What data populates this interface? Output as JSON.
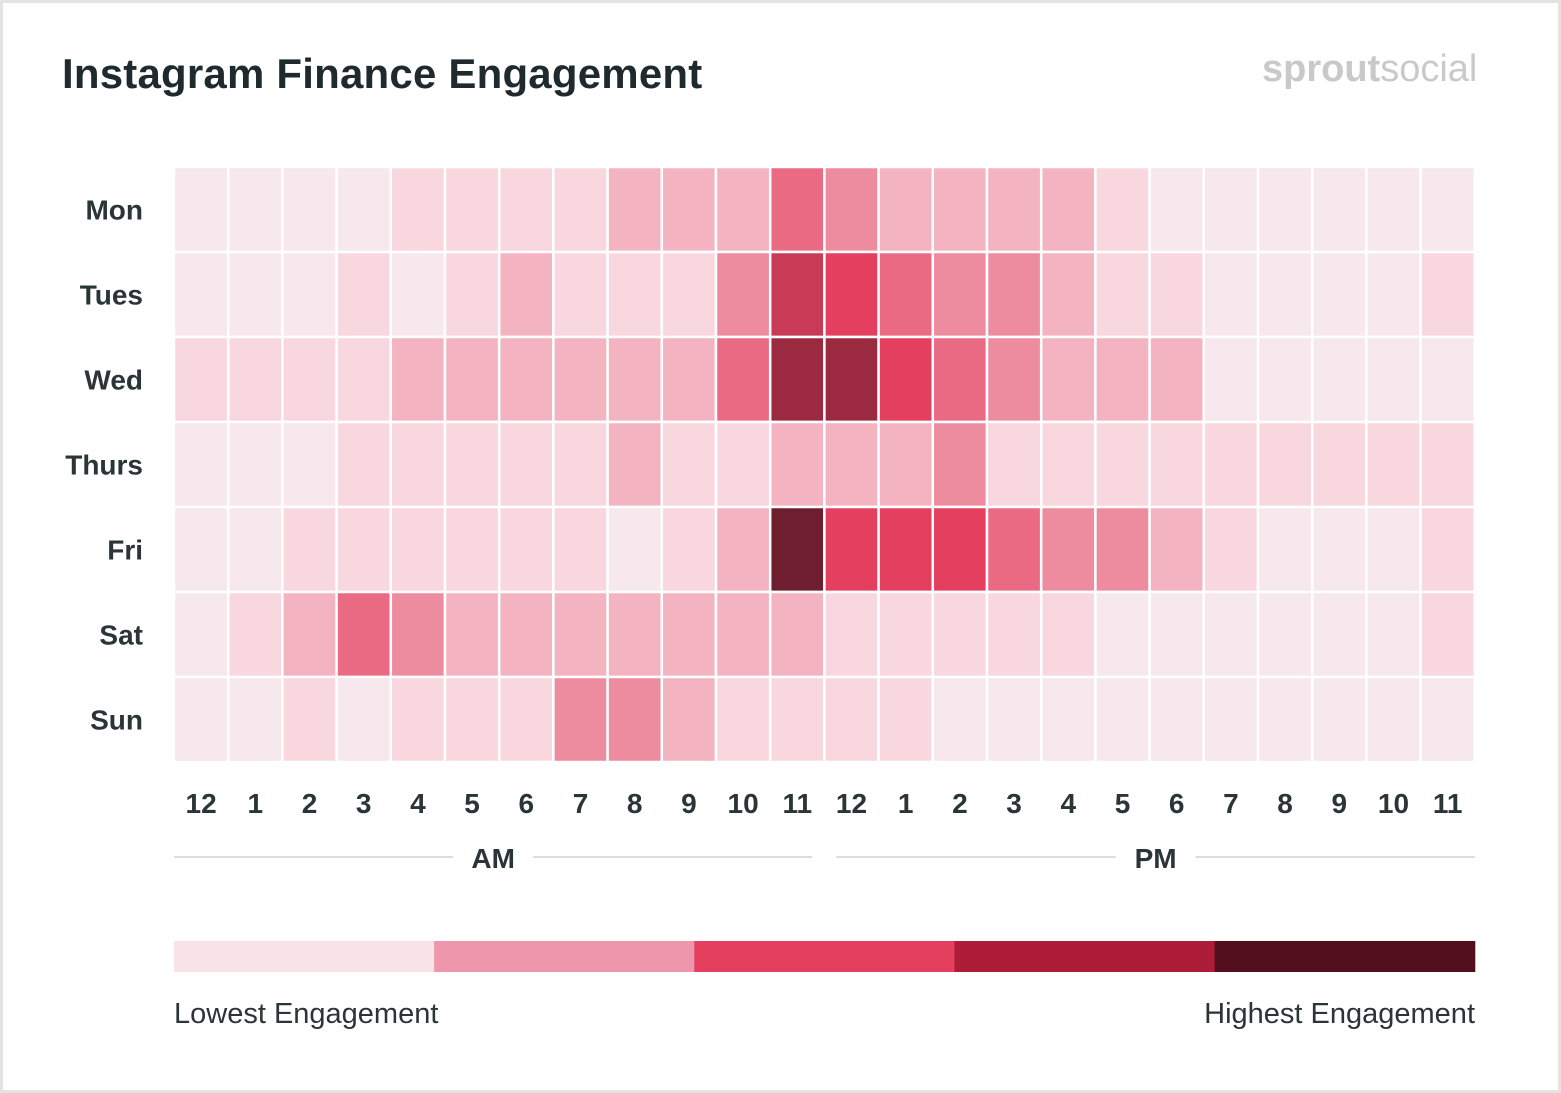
{
  "title": "Instagram Finance Engagement",
  "brand": {
    "part1": "sprout",
    "part2": "social"
  },
  "chart_data": {
    "type": "heatmap",
    "title": "Instagram Finance Engagement",
    "rows": [
      "Mon",
      "Tues",
      "Wed",
      "Thurs",
      "Fri",
      "Sat",
      "Sun"
    ],
    "columns": [
      "12",
      "1",
      "2",
      "3",
      "4",
      "5",
      "6",
      "7",
      "8",
      "9",
      "10",
      "11",
      "12",
      "1",
      "2",
      "3",
      "4",
      "5",
      "6",
      "7",
      "8",
      "9",
      "10",
      "11"
    ],
    "period_labels": [
      "AM",
      "PM"
    ],
    "scale": {
      "min": 0,
      "max": 10
    },
    "level_colors": [
      "#f6e8ec",
      "#f8d8de",
      "#f4b3c0",
      "#ee8c9f",
      "#e96a82",
      "#e43f5f",
      "#c83a56",
      "#9b2a40",
      "#7a1f32",
      "#6f1e2f",
      "#501120"
    ],
    "values": [
      [
        0,
        0,
        0,
        0,
        1,
        1,
        1,
        1,
        2,
        2,
        2,
        4,
        3,
        2,
        2,
        2,
        2,
        1,
        0,
        0,
        0,
        0,
        0,
        0
      ],
      [
        0,
        0,
        0,
        1,
        0,
        1,
        2,
        1,
        1,
        1,
        3,
        6,
        5,
        4,
        3,
        3,
        2,
        1,
        1,
        0,
        0,
        0,
        0,
        1
      ],
      [
        1,
        1,
        1,
        1,
        2,
        2,
        2,
        2,
        2,
        2,
        4,
        7,
        7,
        5,
        4,
        3,
        2,
        2,
        2,
        0,
        0,
        0,
        0,
        0
      ],
      [
        0,
        0,
        0,
        1,
        1,
        1,
        1,
        1,
        2,
        1,
        1,
        2,
        2,
        2,
        3,
        1,
        1,
        1,
        1,
        1,
        1,
        1,
        1,
        1
      ],
      [
        0,
        0,
        1,
        1,
        1,
        1,
        1,
        1,
        0,
        1,
        2,
        9,
        5,
        5,
        5,
        4,
        3,
        3,
        2,
        1,
        0,
        0,
        0,
        1
      ],
      [
        0,
        1,
        2,
        4,
        3,
        2,
        2,
        2,
        2,
        2,
        2,
        2,
        1,
        1,
        1,
        1,
        1,
        0,
        0,
        0,
        0,
        0,
        0,
        1
      ],
      [
        0,
        0,
        1,
        0,
        1,
        1,
        1,
        3,
        3,
        2,
        1,
        1,
        1,
        1,
        0,
        0,
        0,
        0,
        0,
        0,
        0,
        0,
        0,
        0
      ]
    ],
    "legend": {
      "low_label": "Lowest Engagement",
      "high_label": "Highest Engagement",
      "colors": [
        "#f8e3e8",
        "#ee96ab",
        "#e43f5f",
        "#ad1d38",
        "#540f1e"
      ]
    }
  }
}
